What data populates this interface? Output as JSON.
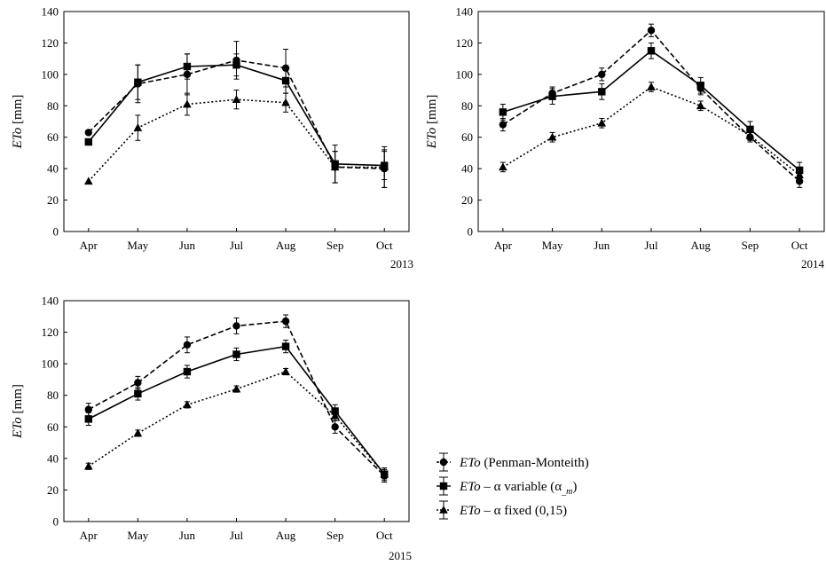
{
  "chart_data": [
    {
      "type": "line",
      "title": "",
      "year_label": "2013",
      "ylabel": "ETo [mm]",
      "ylabel_italic": "ETo",
      "ylabel_unit": " [mm]",
      "categories": [
        "Apr",
        "May",
        "Jun",
        "Jul",
        "Aug",
        "Sep",
        "Oct"
      ],
      "ylim": [
        0,
        140
      ],
      "yticks": [
        0,
        20,
        40,
        60,
        80,
        100,
        120,
        140
      ],
      "series": [
        {
          "key": "pm",
          "values": [
            63,
            94,
            100,
            109,
            104,
            41,
            40
          ],
          "errors": [
            0,
            12,
            13,
            12,
            12,
            10,
            12
          ]
        },
        {
          "key": "var",
          "values": [
            57,
            95,
            105,
            106,
            96,
            43,
            42
          ],
          "errors": [
            0,
            11,
            8,
            7,
            8,
            12,
            9
          ]
        },
        {
          "key": "fix",
          "values": [
            32,
            66,
            81,
            84,
            82,
            41,
            41
          ],
          "errors": [
            0,
            8,
            7,
            6,
            6,
            10,
            13
          ]
        }
      ]
    },
    {
      "type": "line",
      "title": "",
      "year_label": "2014",
      "ylabel": "ETo [mm]",
      "ylabel_italic": "ETo",
      "ylabel_unit": " [mm]",
      "categories": [
        "Apr",
        "May",
        "Jun",
        "Jul",
        "Aug",
        "Sep",
        "Oct"
      ],
      "ylim": [
        0,
        140
      ],
      "yticks": [
        0,
        20,
        40,
        60,
        80,
        100,
        120,
        140
      ],
      "series": [
        {
          "key": "pm",
          "values": [
            68,
            88,
            100,
            128,
            91,
            60,
            32
          ],
          "errors": [
            4,
            4,
            4,
            4,
            4,
            3,
            4
          ]
        },
        {
          "key": "var",
          "values": [
            76,
            86,
            89,
            115,
            93,
            65,
            39
          ],
          "errors": [
            5,
            5,
            5,
            5,
            5,
            5,
            5
          ]
        },
        {
          "key": "fix",
          "values": [
            41,
            60,
            69,
            92,
            80,
            61,
            36
          ],
          "errors": [
            3,
            3,
            3,
            3,
            3,
            3,
            3
          ]
        }
      ]
    },
    {
      "type": "line",
      "title": "",
      "year_label": "2015",
      "ylabel": "ETo [mm]",
      "ylabel_italic": "ETo",
      "ylabel_unit": " [mm]",
      "categories": [
        "Apr",
        "May",
        "Jun",
        "Jul",
        "Aug",
        "Sep",
        "Oct"
      ],
      "ylim": [
        0,
        140
      ],
      "yticks": [
        0,
        20,
        40,
        60,
        80,
        100,
        120,
        140
      ],
      "series": [
        {
          "key": "pm",
          "values": [
            71,
            88,
            112,
            124,
            127,
            60,
            29
          ],
          "errors": [
            4,
            4,
            5,
            5,
            4,
            4,
            4
          ]
        },
        {
          "key": "var",
          "values": [
            65,
            81,
            95,
            106,
            111,
            70,
            30
          ],
          "errors": [
            4,
            4,
            4,
            4,
            4,
            4,
            4
          ]
        },
        {
          "key": "fix",
          "values": [
            35,
            56,
            74,
            84,
            95,
            67,
            30
          ],
          "errors": [
            2,
            2,
            2,
            2,
            2,
            3,
            3
          ]
        }
      ]
    }
  ],
  "legend": {
    "placement": "bottom-right",
    "items": [
      {
        "key": "pm",
        "marker": "circle",
        "dash": "dashed",
        "italic": "ETo",
        "text": " (Penman-Monteith)",
        "sub": ""
      },
      {
        "key": "var",
        "marker": "square",
        "dash": "solid",
        "italic": "ETo",
        "text": " – α variable (α",
        "sub": "_m",
        "tail": ")"
      },
      {
        "key": "fix",
        "marker": "triangle",
        "dash": "dotted",
        "italic": "ETo",
        "text": " – α fixed (0,15)",
        "sub": ""
      }
    ]
  },
  "colors": {
    "line": "#000000",
    "frame": "#000000",
    "background": "#ffffff"
  }
}
